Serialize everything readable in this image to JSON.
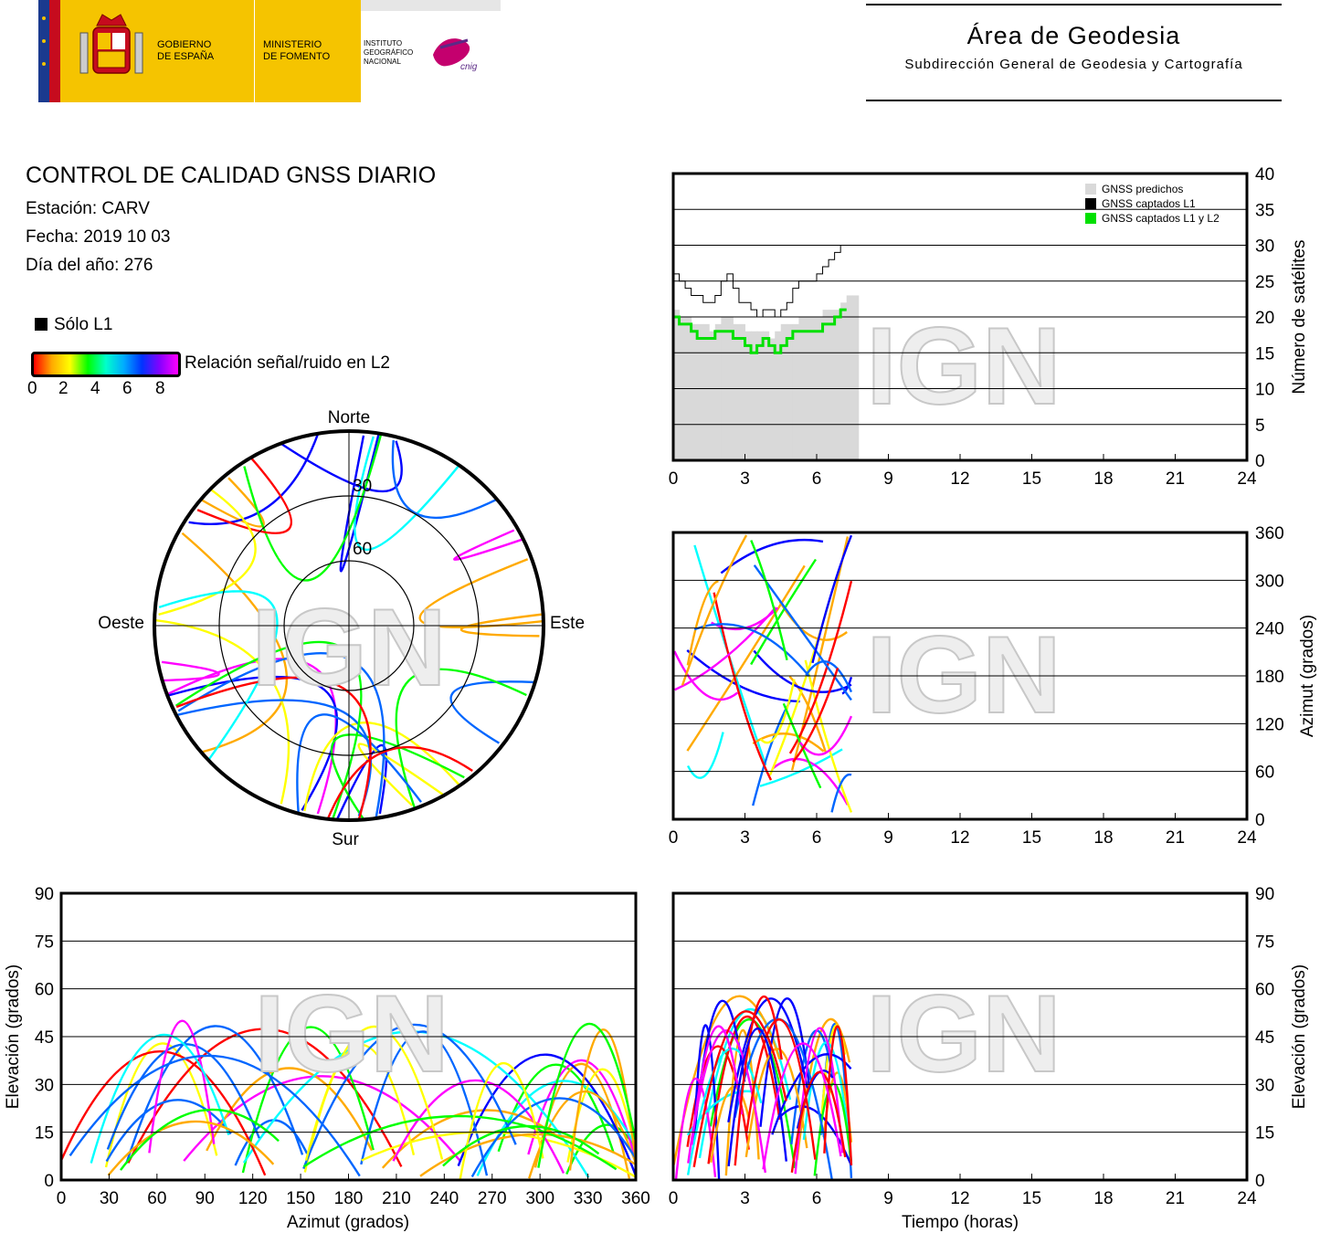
{
  "header": {
    "logo": {
      "gobierno": [
        "GOBIERNO",
        "DE ESPAÑA"
      ],
      "ministerio": [
        "MINISTERIO",
        "DE FOMENTO"
      ],
      "instituto": [
        "INSTITUTO",
        "GEOGRÁFICO",
        "NACIONAL"
      ],
      "cnig": "cnig"
    },
    "area_title": "Área de Geodesia",
    "area_subtitle": "Subdirección General de Geodesia y Cartografía"
  },
  "info": {
    "title": "CONTROL DE CALIDAD GNSS DIARIO",
    "station": "Estación: CARV",
    "date": "Fecha: 2019 10 03",
    "doy": "Día del año: 276",
    "l1_only": "Sólo L1",
    "snr_label": "Relación señal/ruido en L2",
    "snr_ticks": [
      "0",
      "2",
      "4",
      "6",
      "8"
    ]
  },
  "watermark": "IGN",
  "colors": {
    "predicted": "#d9d9d9",
    "l1": "#000000",
    "l1l2": "#00e000",
    "snr_scale": [
      "#ff0000",
      "#ffaa00",
      "#ffff00",
      "#00ff00",
      "#00ffff",
      "#0066ff",
      "#0000ff",
      "#ff00ff"
    ]
  },
  "chart_data": [
    {
      "type": "line",
      "x": [
        0,
        0.25,
        0.5,
        0.75,
        1,
        1.25,
        1.5,
        1.75,
        2,
        2.25,
        2.5,
        2.75,
        3,
        3.25,
        3.5,
        3.75,
        4,
        4.25,
        4.5,
        4.75,
        5,
        5.25,
        5.5,
        5.75,
        6,
        6.25,
        6.5,
        6.75,
        7,
        7.25,
        7.5
      ],
      "series": [
        {
          "name": "GNSS predichos",
          "values": [
            21,
            20,
            20,
            19,
            19,
            19,
            18,
            19,
            20,
            20,
            19,
            19,
            18,
            18,
            18,
            18,
            17,
            18,
            19,
            19,
            19,
            20,
            20,
            20,
            20,
            21,
            21,
            21,
            22,
            23,
            23
          ]
        },
        {
          "name": "GNSS captados L1",
          "values": [
            26,
            25,
            24,
            23,
            23,
            22,
            22,
            23,
            25,
            26,
            24,
            22,
            22,
            21,
            20,
            21,
            21,
            20,
            21,
            22,
            24,
            25,
            25,
            25,
            26,
            27,
            28,
            29,
            30,
            null,
            null
          ]
        },
        {
          "name": "GNSS captados L1 y L2",
          "values": [
            20,
            19,
            19,
            18,
            17,
            17,
            17,
            18,
            18,
            18,
            17,
            17,
            16,
            15,
            16,
            17,
            16,
            15,
            16,
            17,
            18,
            18,
            18,
            18,
            18,
            19,
            19,
            20,
            21,
            null,
            null
          ]
        }
      ],
      "xlim": [
        0,
        24
      ],
      "ylim": [
        0,
        40
      ],
      "xticks": [
        0,
        3,
        6,
        9,
        12,
        15,
        18,
        21,
        24
      ],
      "yticks": [
        0,
        5,
        10,
        15,
        20,
        25,
        30,
        35,
        40
      ],
      "ylabel": "Número de satélites",
      "legend": "top-right",
      "grid": "horizontal"
    },
    {
      "type": "scatter",
      "title": "skyplot",
      "directions": {
        "north": "Norte",
        "south": "Sur",
        "west": "Oeste",
        "east": "Este"
      },
      "elevation_rings": [
        "30",
        "60"
      ]
    },
    {
      "type": "scatter",
      "xlim": [
        0,
        24
      ],
      "ylim": [
        0,
        360
      ],
      "xticks": [
        0,
        3,
        6,
        9,
        12,
        15,
        18,
        21,
        24
      ],
      "yticks": [
        0,
        60,
        120,
        180,
        240,
        300,
        360
      ],
      "ylabel": "Azimut (grados)",
      "grid": "horizontal"
    },
    {
      "type": "scatter",
      "xlim": [
        0,
        360
      ],
      "ylim": [
        0,
        90
      ],
      "xticks": [
        0,
        30,
        60,
        90,
        120,
        150,
        180,
        210,
        240,
        270,
        300,
        330,
        360
      ],
      "yticks": [
        0,
        15,
        30,
        45,
        60,
        75,
        90
      ],
      "xlabel": "Azimut (grados)",
      "ylabel": "Elevación (grados)",
      "grid": "horizontal"
    },
    {
      "type": "scatter",
      "xlim": [
        0,
        24
      ],
      "ylim": [
        0,
        90
      ],
      "xticks": [
        0,
        3,
        6,
        9,
        12,
        15,
        18,
        21,
        24
      ],
      "yticks": [
        0,
        15,
        30,
        45,
        60,
        75,
        90
      ],
      "xlabel": "Tiempo (horas)",
      "ylabel": "Elevación (grados)",
      "grid": "horizontal"
    }
  ]
}
